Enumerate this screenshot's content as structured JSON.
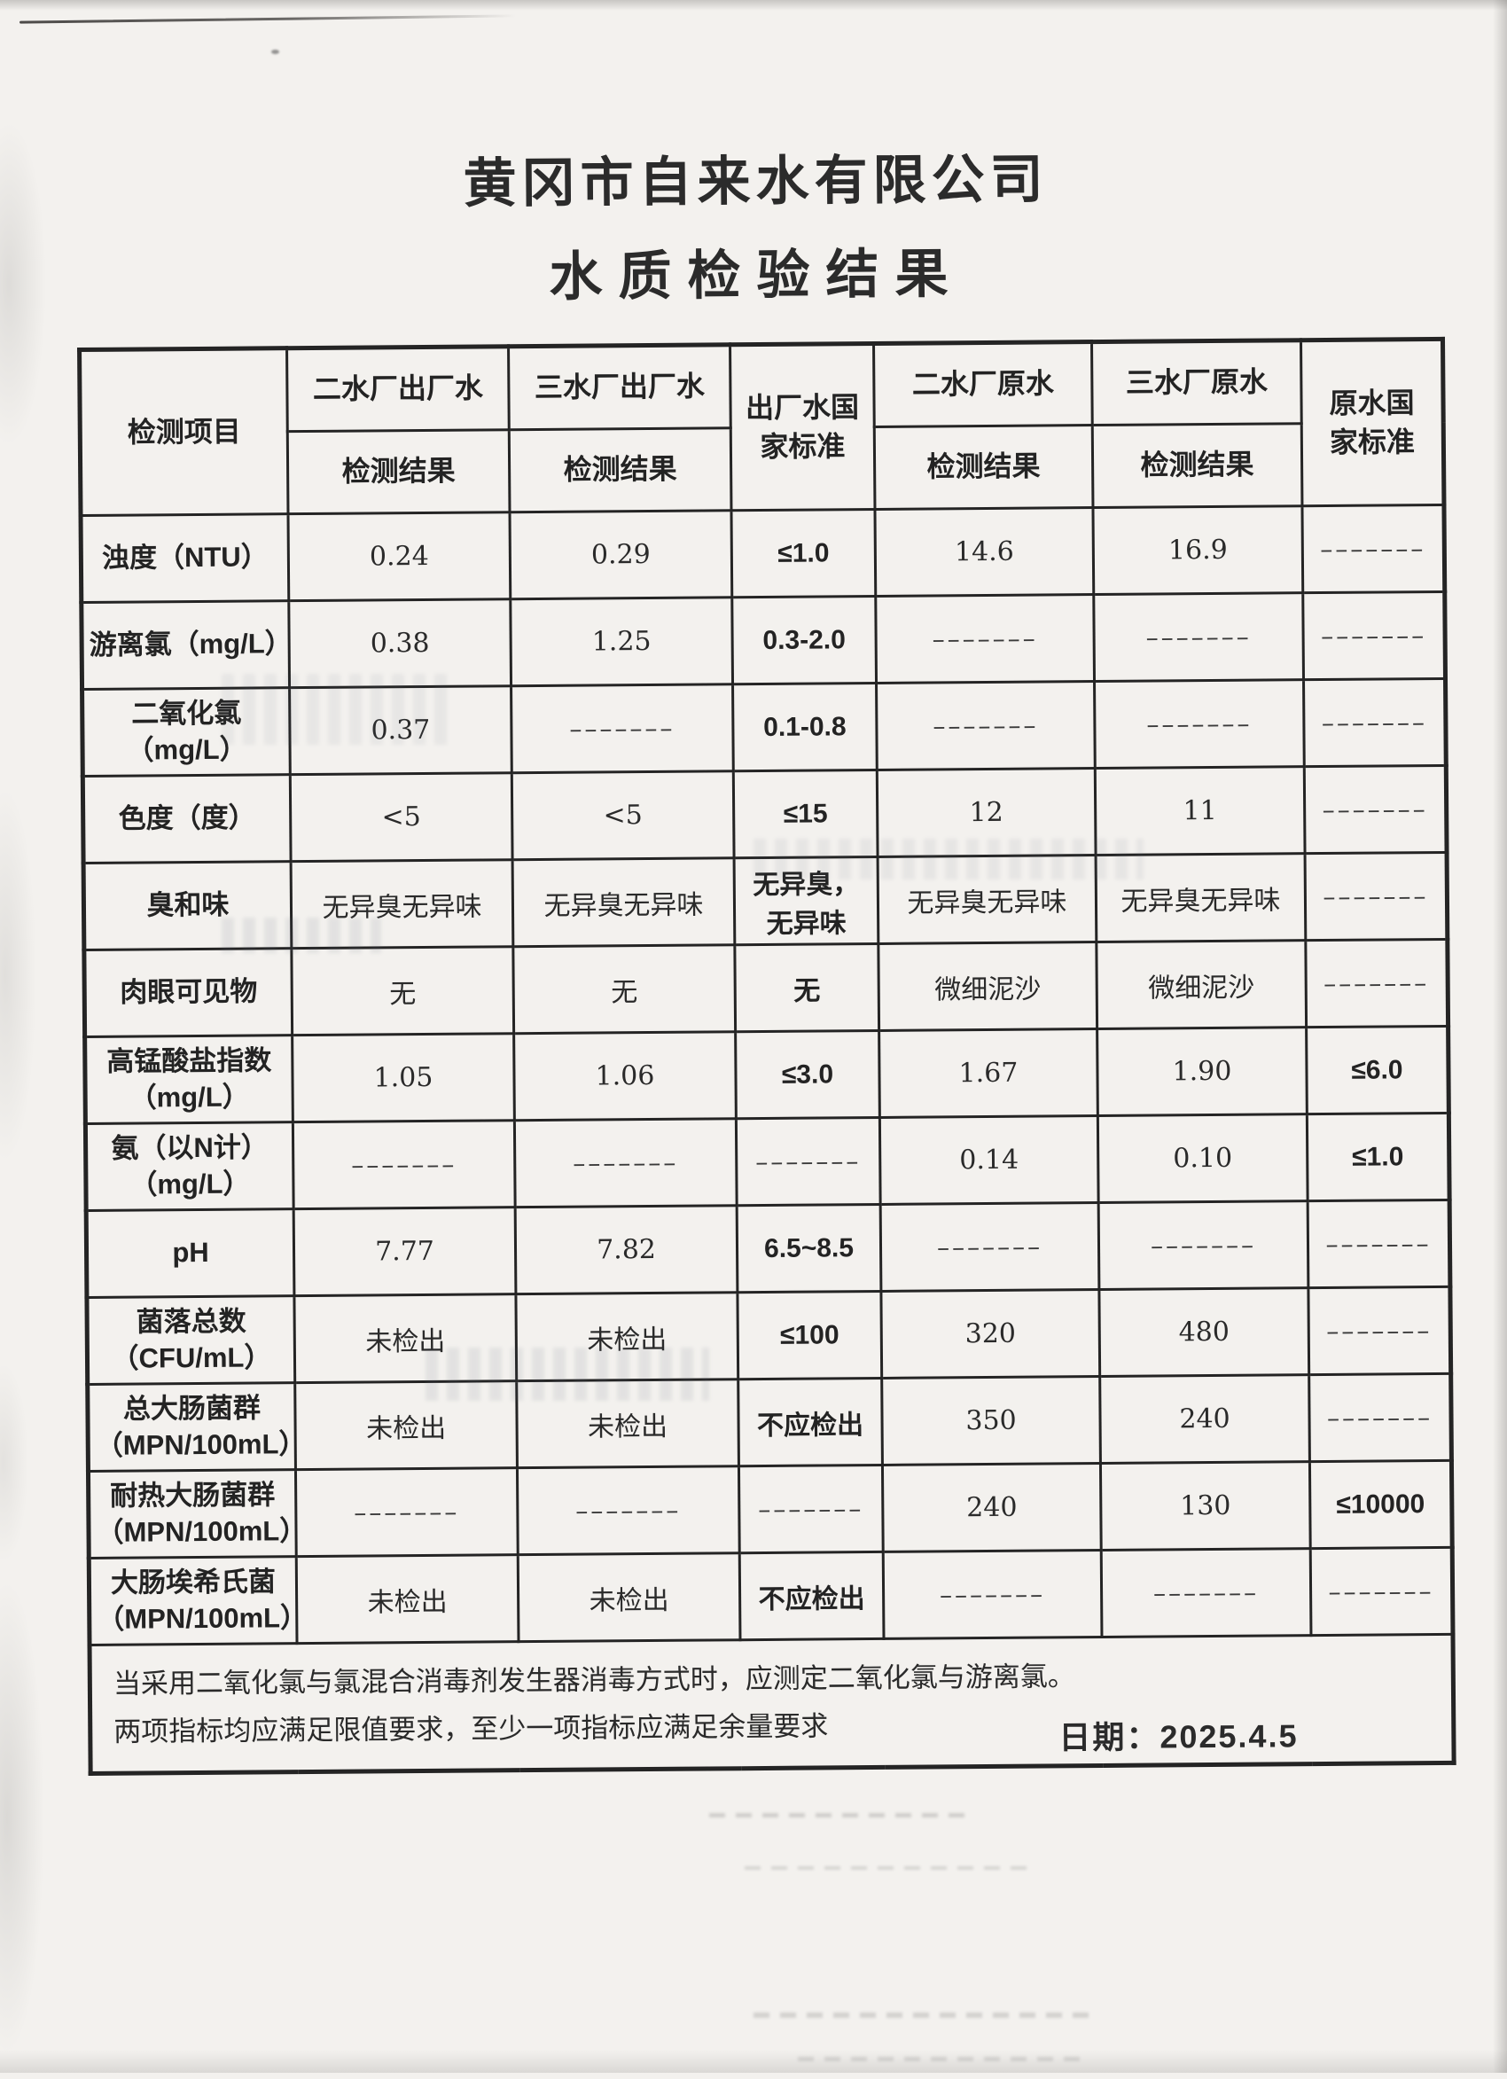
{
  "page": {
    "title_line1": "黄冈市自来水有限公司",
    "title_line2": "水质检验结果",
    "date_label": "日期：2025.4.5"
  },
  "table": {
    "header": {
      "item_col": "检测项目",
      "result_label": "检测结果",
      "groups": [
        "二水厂出厂水",
        "三水厂出厂水",
        "出厂水国\n家标准",
        "二水厂原水",
        "三水厂原水",
        "原水国\n家标准"
      ]
    },
    "rows": [
      {
        "label": "浊度（NTU）",
        "values": [
          "0.24",
          "0.29",
          "≤1.0",
          "14.6",
          "16.9",
          "–––––––"
        ]
      },
      {
        "label": "游离氯（mg/L）",
        "values": [
          "0.38",
          "1.25",
          "0.3-2.0",
          "–––––––",
          "–––––––",
          "–––––––"
        ]
      },
      {
        "label": "二氧化氯\n（mg/L）",
        "values": [
          "0.37",
          "–––––––",
          "0.1-0.8",
          "–––––––",
          "–––––––",
          "–––––––"
        ]
      },
      {
        "label": "色度（度）",
        "values": [
          "<5",
          "<5",
          "≤15",
          "12",
          "11",
          "–––––––"
        ]
      },
      {
        "label": "臭和味",
        "values": [
          "无异臭无异味",
          "无异臭无异味",
          "无异臭，\n无异味",
          "无异臭无异味",
          "无异臭无异味",
          "–––––––"
        ]
      },
      {
        "label": "肉眼可见物",
        "values": [
          "无",
          "无",
          "无",
          "微细泥沙",
          "微细泥沙",
          "–––––––"
        ]
      },
      {
        "label": "高锰酸盐指数\n（mg/L）",
        "values": [
          "1.05",
          "1.06",
          "≤3.0",
          "1.67",
          "1.90",
          "≤6.0"
        ]
      },
      {
        "label": "氨（以N计）\n（mg/L）",
        "values": [
          "–––––––",
          "–––––––",
          "–––––––",
          "0.14",
          "0.10",
          "≤1.0"
        ]
      },
      {
        "label": "pH",
        "values": [
          "7.77",
          "7.82",
          "6.5~8.5",
          "–––––––",
          "–––––––",
          "–––––––"
        ]
      },
      {
        "label": "菌落总数\n（CFU/mL）",
        "values": [
          "未检出",
          "未检出",
          "≤100",
          "320",
          "480",
          "–––––––"
        ]
      },
      {
        "label": "总大肠菌群\n（MPN/100mL）",
        "values": [
          "未检出",
          "未检出",
          "不应检出",
          "350",
          "240",
          "–––––––"
        ]
      },
      {
        "label": "耐热大肠菌群\n（MPN/100mL）",
        "values": [
          "–––––––",
          "–––––––",
          "–––––––",
          "240",
          "130",
          "≤10000"
        ]
      },
      {
        "label": "大肠埃希氏菌\n（MPN/100mL）",
        "values": [
          "未检出",
          "未检出",
          "不应检出",
          "–––––––",
          "–––––––",
          "–––––––"
        ]
      }
    ],
    "footnote": "当采用二氧化氯与氯混合消毒剂发生器消毒方式时，应测定二氧化氯与游离氯。\n两项指标均应满足限值要求，至少一项指标应满足余量要求"
  }
}
